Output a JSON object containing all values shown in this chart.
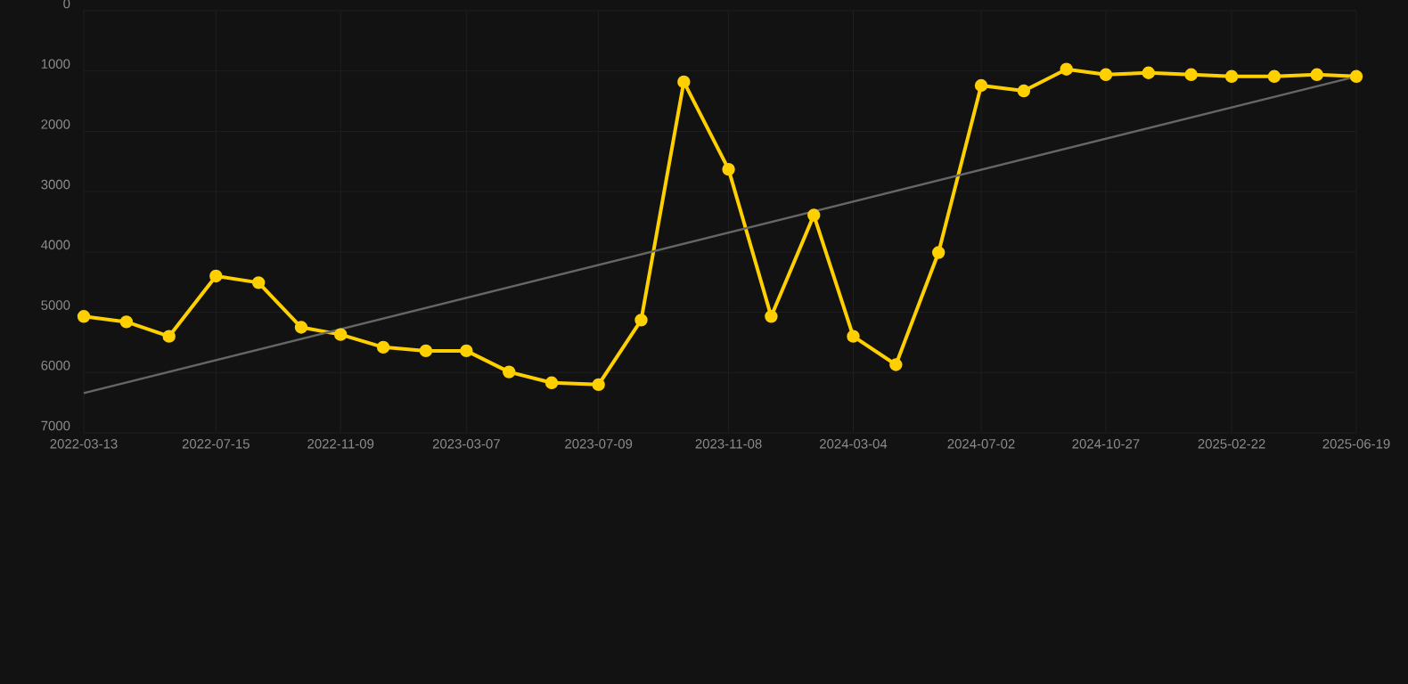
{
  "chart_data": {
    "type": "line",
    "x": [
      "2022-03-13",
      "2022-04-22",
      "2022-06-01",
      "2022-07-15",
      "2022-08-24",
      "2022-10-03",
      "2022-11-09",
      "2022-12-19",
      "2023-01-28",
      "2023-03-07",
      "2023-04-16",
      "2023-05-26",
      "2023-07-09",
      "2023-08-18",
      "2023-09-27",
      "2023-11-08",
      "2023-12-18",
      "2024-01-27",
      "2024-03-04",
      "2024-04-13",
      "2024-05-23",
      "2024-07-02",
      "2024-08-11",
      "2024-09-20",
      "2024-10-27",
      "2024-12-06",
      "2025-01-15",
      "2025-02-22",
      "2025-04-03",
      "2025-05-13",
      "2025-06-19"
    ],
    "series": [
      {
        "color": "#ffd000",
        "marker": "circle",
        "values": [
          5070,
          5160,
          5400,
          4400,
          4510,
          5250,
          5370,
          5580,
          5640,
          5640,
          5990,
          6170,
          6200,
          5130,
          1180,
          2630,
          5070,
          3390,
          5400,
          5870,
          4010,
          1240,
          1330,
          970,
          1060,
          1030,
          1060,
          1090,
          1090,
          1060,
          1090
        ]
      },
      {
        "color": "#666666",
        "marker": "none",
        "x": [
          "2022-03-13",
          "2025-06-19"
        ],
        "values": [
          6340,
          1090
        ]
      }
    ],
    "xlim": [
      "2022-03-13",
      "2025-06-19"
    ],
    "ylim": [
      7000,
      0
    ],
    "xticks": [
      "2022-03-13",
      "2022-07-15",
      "2022-11-09",
      "2023-03-07",
      "2023-07-09",
      "2023-11-08",
      "2024-03-04",
      "2024-07-02",
      "2024-10-27",
      "2025-02-22",
      "2025-06-19"
    ],
    "yticks": [
      0,
      1000,
      2000,
      3000,
      4000,
      5000,
      6000,
      7000
    ],
    "grid": true,
    "line_style": "solid"
  }
}
